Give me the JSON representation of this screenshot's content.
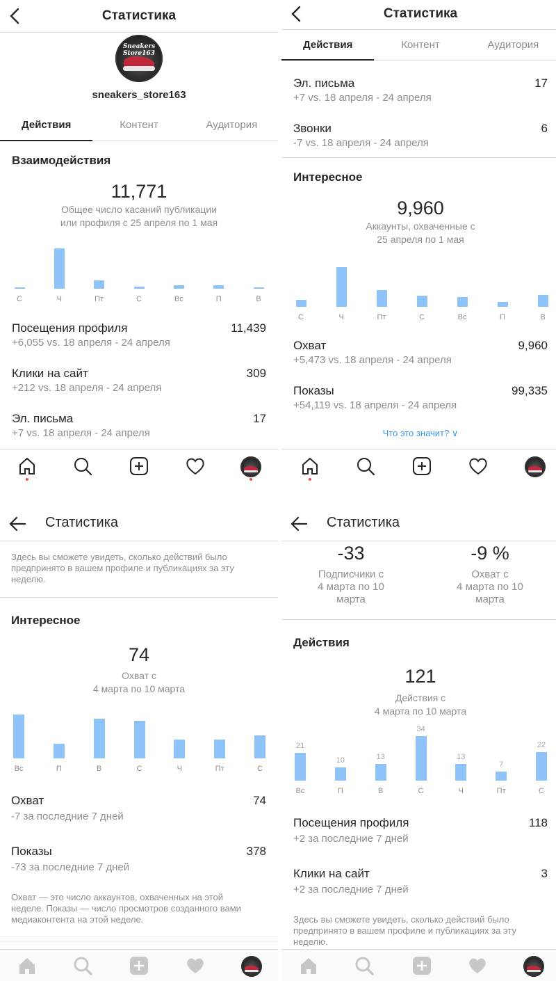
{
  "p1": {
    "title": "Статистика",
    "username": "sneakers_store163",
    "avatar_text": "Sneakers Store163",
    "tabs": [
      "Действия",
      "Контент",
      "Аудитория"
    ],
    "section": "Взаимодействия",
    "big": "11,771",
    "sub1": "Общее число касаний публикации",
    "sub2": "или профиля с 25 апреля по 1 мая",
    "chart_days": [
      "С",
      "Ч",
      "Пт",
      "С",
      "Вс",
      "П",
      "В"
    ],
    "chart_values": [
      1,
      58,
      12,
      3,
      5,
      5,
      1
    ],
    "metrics": [
      {
        "name": "Посещения профиля",
        "value": "11,439",
        "delta": "+6,055 vs. 18 апреля - 24 апреля"
      },
      {
        "name": "Клики на сайт",
        "value": "309",
        "delta": "+212 vs. 18 апреля - 24 апреля"
      },
      {
        "name": "Эл. письма",
        "value": "17",
        "delta": "+7 vs. 18 апреля - 24 апреля"
      }
    ]
  },
  "p2": {
    "title": "Статистика",
    "tabs": [
      "Действия",
      "Контент",
      "Аудитория"
    ],
    "metrics_top": [
      {
        "name": "Эл. письма",
        "value": "17",
        "delta": "+7 vs. 18 апреля - 24 апреля"
      },
      {
        "name": "Звонки",
        "value": "6",
        "delta": "-7 vs. 18 апреля - 24 апреля"
      }
    ],
    "section": "Интересное",
    "big": "9,960",
    "sub1": "Аккаунты, охваченные с",
    "sub2": "25 апреля по 1 мая",
    "chart_days": [
      "С",
      "Ч",
      "Пт",
      "С",
      "Вс",
      "П",
      "В"
    ],
    "chart_values": [
      10,
      57,
      24,
      16,
      14,
      7,
      17
    ],
    "metrics": [
      {
        "name": "Охват",
        "value": "9,960",
        "delta": "+5,473 vs. 18 апреля - 24 апреля"
      },
      {
        "name": "Показы",
        "value": "99,335",
        "delta": "+54,119 vs. 18 апреля - 24 апреля"
      }
    ],
    "link": "Что это значит? ∨"
  },
  "p3": {
    "title": "Статистика",
    "note_top1": "Здесь вы сможете увидеть, сколько действий было",
    "note_top2": "предпринято в вашем профиле и публикациях за эту",
    "note_top3": "неделю.",
    "section": "Интересное",
    "big": "74",
    "sub1": "Охват с",
    "sub2": "4 марта по 10 марта",
    "chart_days": [
      "Вс",
      "П",
      "В",
      "С",
      "Ч",
      "Пт",
      "С"
    ],
    "chart_values": [
      21,
      7,
      19,
      18,
      9,
      9,
      11
    ],
    "metrics": [
      {
        "name": "Охват",
        "value": "74",
        "delta": "-7 за последние 7 дней"
      },
      {
        "name": "Показы",
        "value": "378",
        "delta": "-73 за последние 7 дней"
      }
    ],
    "note1": "Охват — это число аккаунтов, охваченных на этой",
    "note2": "неделе. Показы — число просмотров созданного вами",
    "note3": "медиаконтента на этой неделе."
  },
  "p4": {
    "title": "Статистика",
    "left": {
      "num": "-33",
      "s1": "Подписчики с",
      "s2": "4 марта по 10",
      "s3": "марта"
    },
    "right": {
      "num": "-9 %",
      "s1": "Охват с",
      "s2": "4 марта по 10",
      "s3": "марта"
    },
    "section": "Действия",
    "big": "121",
    "sub1": "Действия с",
    "sub2": "4 марта по 10 марта",
    "chart_days": [
      "Вс",
      "П",
      "В",
      "С",
      "Ч",
      "Пт",
      "С"
    ],
    "chart_values": [
      21,
      10,
      13,
      34,
      13,
      7,
      22
    ],
    "chart_value_labels": [
      "21",
      "10",
      "13",
      "34",
      "13",
      "7",
      "22"
    ],
    "metrics": [
      {
        "name": "Посещения профиля",
        "value": "118",
        "delta": "+2 за последние 7 дней"
      },
      {
        "name": "Клики на сайт",
        "value": "3",
        "delta": "+2 за последние 7 дней"
      }
    ],
    "note1": "Здесь вы сможете увидеть, сколько действий было",
    "note2": "предпринято в вашем профиле и публикациях за эту",
    "note3": "неделю."
  },
  "colors": {
    "bar": "#8ec3f9",
    "link": "#3897f0",
    "dot": "#ed4956"
  },
  "chart_data": [
    {
      "type": "bar",
      "title": "Взаимодействия",
      "categories": [
        "С",
        "Ч",
        "Пт",
        "С",
        "Вс",
        "П",
        "В"
      ],
      "values": [
        1,
        58,
        12,
        3,
        5,
        5,
        1
      ]
    },
    {
      "type": "bar",
      "title": "Интересное",
      "categories": [
        "С",
        "Ч",
        "Пт",
        "С",
        "Вс",
        "П",
        "В"
      ],
      "values": [
        10,
        57,
        24,
        16,
        14,
        7,
        17
      ]
    },
    {
      "type": "bar",
      "title": "Интересное",
      "categories": [
        "Вс",
        "П",
        "В",
        "С",
        "Ч",
        "Пт",
        "С"
      ],
      "values": [
        21,
        7,
        19,
        18,
        9,
        9,
        11
      ]
    },
    {
      "type": "bar",
      "title": "Действия",
      "categories": [
        "Вс",
        "П",
        "В",
        "С",
        "Ч",
        "Пт",
        "С"
      ],
      "values": [
        21,
        10,
        13,
        34,
        13,
        7,
        22
      ]
    }
  ]
}
